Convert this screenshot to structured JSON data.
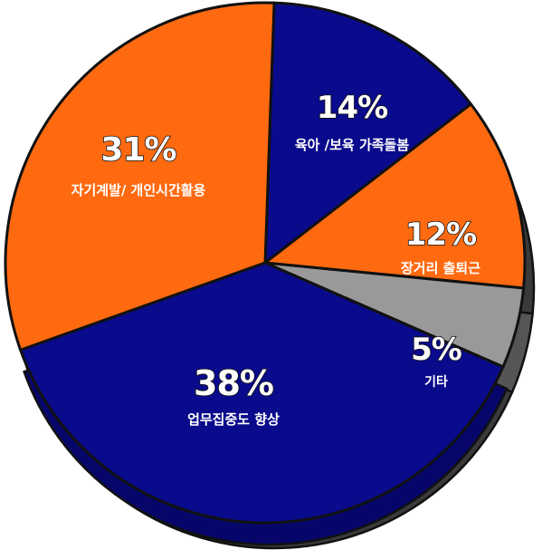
{
  "chart_data": {
    "type": "pie",
    "style": "3d",
    "categories": [
      "육아 /보육 가족돌봄",
      "장거리 출퇴근",
      "기타",
      "업무집중도 향상",
      "자기계발/ 개인시간활용"
    ],
    "values": [
      14,
      12,
      5,
      38,
      31
    ],
    "value_labels": [
      "14%",
      "12%",
      "5%",
      "38%",
      "31%"
    ],
    "colors": {
      "blue": "#0a0a8c",
      "orange": "#ff6a10",
      "gray": "#999999",
      "blue_side": "#06066a",
      "gray_side": "#555555",
      "outline": "#111111"
    },
    "slice_colors": [
      "blue",
      "orange",
      "gray",
      "blue",
      "orange"
    ]
  }
}
